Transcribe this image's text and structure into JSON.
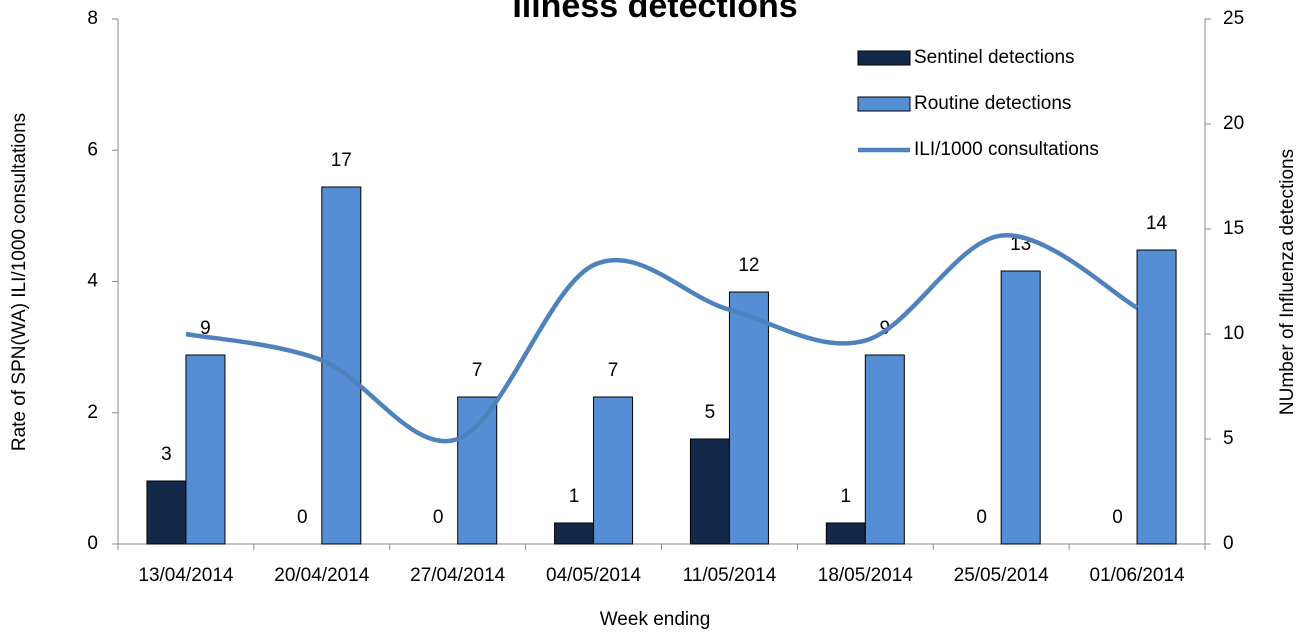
{
  "chart_data": {
    "type": "bar",
    "title": "Illness detections",
    "xlabel": "Week ending",
    "ylabel": "Rate of SPN(WA) ILI/1000 consultations",
    "y2label": "NUmber of Influenza detections",
    "categories": [
      "13/04/2014",
      "20/04/2014",
      "27/04/2014",
      "04/05/2014",
      "11/05/2014",
      "18/05/2014",
      "25/05/2014",
      "01/06/2014"
    ],
    "series": [
      {
        "name": "Sentinel detections",
        "type": "bar",
        "axis": "y2",
        "color": "#14294a",
        "values": [
          3,
          0,
          0,
          1,
          5,
          1,
          0,
          0
        ]
      },
      {
        "name": "Routine detections",
        "type": "bar",
        "axis": "y2",
        "color": "#558ed5",
        "values": [
          9,
          17,
          7,
          7,
          12,
          9,
          13,
          14
        ]
      },
      {
        "name": "ILI/1000 consultations",
        "type": "line",
        "axis": "y",
        "color": "#4f81bd",
        "values": [
          3.2,
          2.8,
          1.6,
          4.25,
          3.57,
          3.1,
          4.7,
          3.6
        ]
      }
    ],
    "ylim": [
      0,
      8
    ],
    "yticks": [
      0,
      2,
      4,
      6,
      8
    ],
    "y2lim": [
      0,
      25
    ],
    "y2ticks": [
      0,
      5,
      10,
      15,
      20,
      25
    ],
    "legend": "upper right"
  }
}
